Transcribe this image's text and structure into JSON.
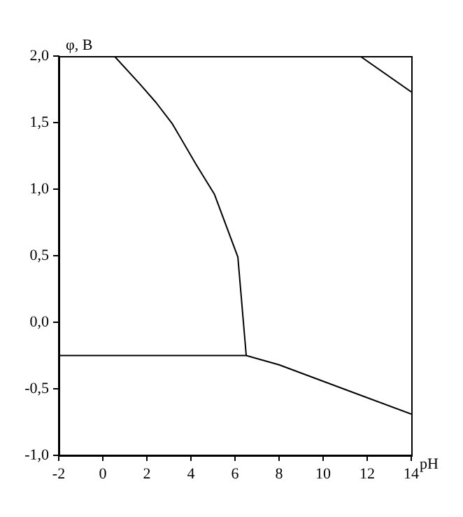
{
  "chart_data": {
    "type": "line",
    "xlabel": "pH",
    "ylabel": "φ, B",
    "series": [
      {
        "color": "#000000",
        "x": [
          0.52,
          1.68,
          2.42,
          3.16,
          4.22,
          5.07,
          6.13,
          6.51
        ],
        "values": [
          2.0,
          1.79,
          1.65,
          1.49,
          1.19,
          0.96,
          0.49,
          -0.25
        ]
      },
      {
        "color": "#000000",
        "x": [
          -2,
          6.51,
          8.0,
          14
        ],
        "values": [
          -0.25,
          -0.25,
          -0.32,
          -0.69
        ]
      },
      {
        "color": "#000000",
        "x": [
          11.67,
          14
        ],
        "values": [
          2.0,
          1.73
        ]
      }
    ],
    "xlim": [
      -2,
      14
    ],
    "xticks": [
      -2,
      0,
      2,
      4,
      6,
      8,
      10,
      12,
      14
    ],
    "ylim": [
      -1.0,
      2.0
    ],
    "yticks": [
      {
        "value": -1.0,
        "label": "-1,0"
      },
      {
        "value": -0.5,
        "label": "-0,5"
      },
      {
        "value": 0.0,
        "label": "0,0"
      },
      {
        "value": 0.5,
        "label": "0,5"
      },
      {
        "value": 1.0,
        "label": "1,0"
      },
      {
        "value": 1.5,
        "label": "1,5"
      },
      {
        "value": 2.0,
        "label": "2,0"
      }
    ],
    "grid": false,
    "legend": false,
    "marker": "none",
    "line_style": "solid"
  }
}
